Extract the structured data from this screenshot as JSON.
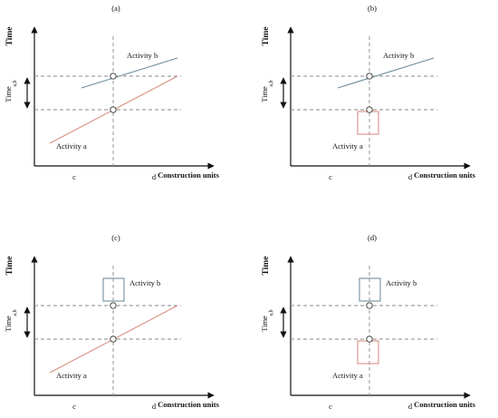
{
  "colors": {
    "axis": "#111111",
    "guide": "#8a8a8a",
    "activity_a": "#d98f83",
    "activity_b": "#6f8fa0",
    "circle_stroke": "#333333"
  },
  "icons": {
    "arrow": "arrowhead",
    "marker": "open-circle"
  },
  "panels": [
    {
      "id": "a",
      "label": "(a)",
      "ylabel": "Time",
      "xlabel": "Construction units",
      "interval_label": "Time",
      "interval_sub": "a,b",
      "c_label": "c",
      "d_label": "d",
      "activity_a": "Activity a",
      "activity_b": "Activity b",
      "activity_a_form": "line",
      "activity_b_form": "line"
    },
    {
      "id": "b",
      "label": "(b)",
      "ylabel": "Time",
      "xlabel": "Construction units",
      "interval_label": "Time",
      "interval_sub": "a,b",
      "c_label": "c",
      "d_label": "d",
      "activity_a": "Activity a",
      "activity_b": "Activity b",
      "activity_a_form": "box",
      "activity_b_form": "line"
    },
    {
      "id": "c",
      "label": "(c)",
      "ylabel": "Time",
      "xlabel": "Construction units",
      "interval_label": "Time",
      "interval_sub": "a,b",
      "c_label": "c",
      "d_label": "d",
      "activity_a": "Activity a",
      "activity_b": "Activity b",
      "activity_a_form": "line",
      "activity_b_form": "box"
    },
    {
      "id": "d",
      "label": "(d)",
      "ylabel": "Time",
      "xlabel": "Construction units",
      "interval_label": "Time",
      "interval_sub": "a,b",
      "c_label": "c",
      "d_label": "d",
      "activity_a": "Activity a",
      "activity_b": "Activity b",
      "activity_a_form": "box",
      "activity_b_form": "box"
    }
  ]
}
